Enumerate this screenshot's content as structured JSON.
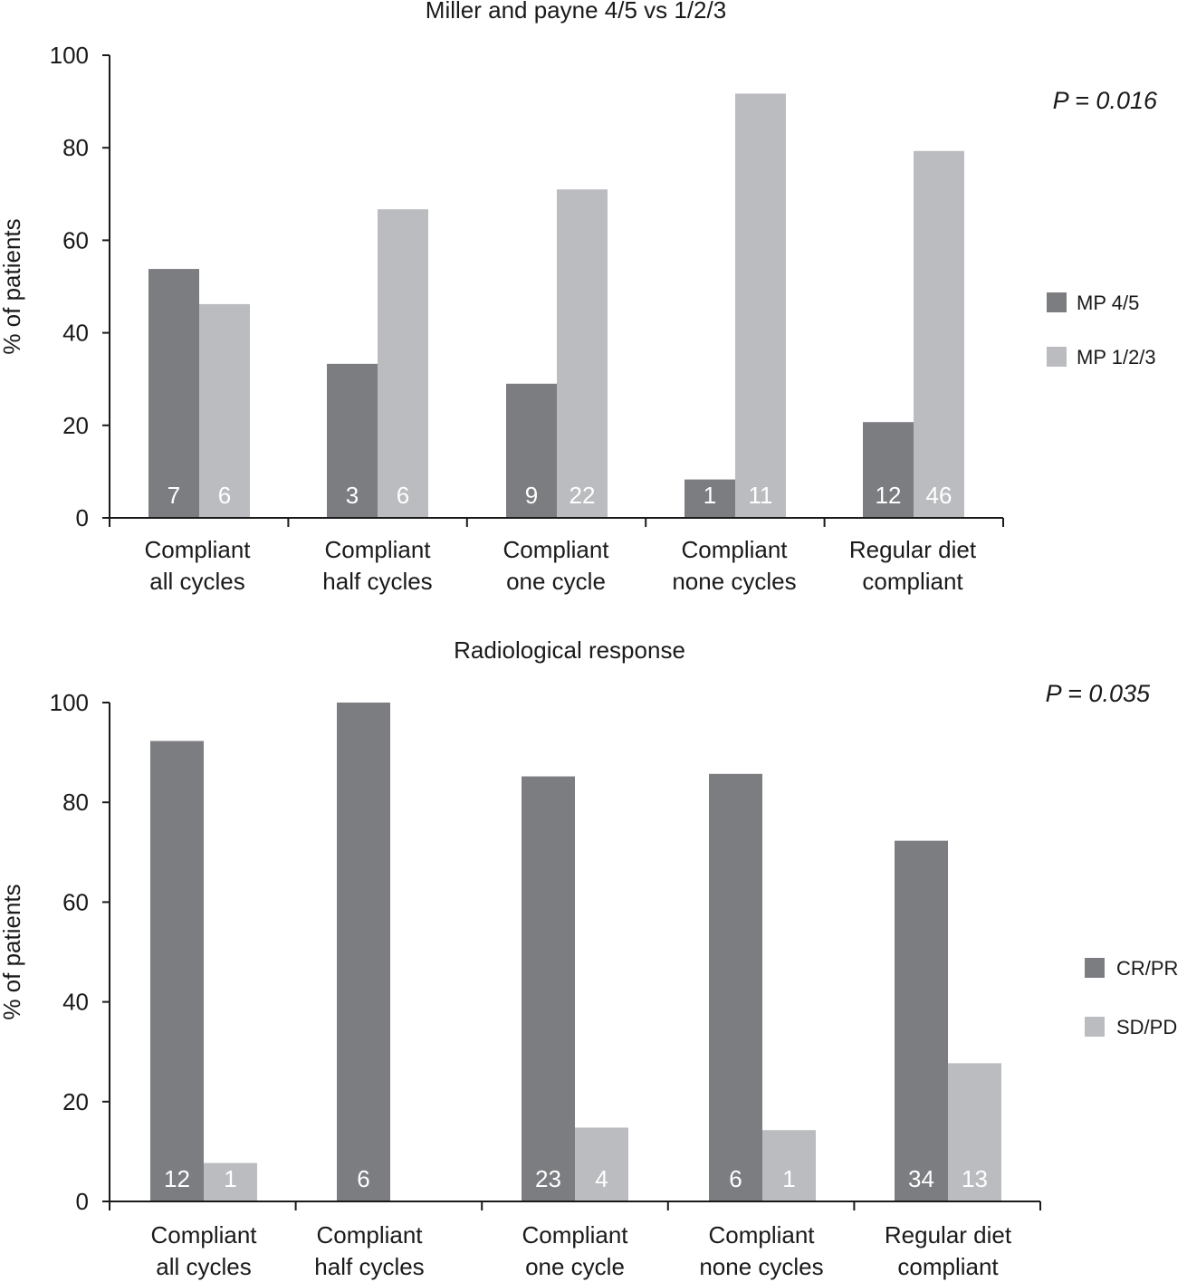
{
  "colors": {
    "dark": "#7c7d81",
    "light": "#bbbcbf",
    "axis": "#1a1a1a",
    "inbar": "#ffffff"
  },
  "chart_data": [
    {
      "type": "bar",
      "title": "Miller and payne 4/5 vs 1/2/3",
      "ylabel": "% of patients",
      "xlabel": "",
      "ylim": [
        0,
        100
      ],
      "yticks": [
        "0",
        "20",
        "40",
        "60",
        "80",
        "100"
      ],
      "annotation": "P = 0.016",
      "legend_position": "right",
      "categories": [
        [
          "Compliant",
          "all cycles"
        ],
        [
          "Compliant",
          "half cycles"
        ],
        [
          "Compliant",
          "one cycle"
        ],
        [
          "Compliant",
          "none cycles"
        ],
        [
          "Regular diet",
          "compliant"
        ]
      ],
      "series": [
        {
          "name": "MP 4/5",
          "values": [
            53.8,
            33.3,
            29.0,
            8.3,
            20.7
          ],
          "counts": [
            "7",
            "3",
            "9",
            "1",
            "12"
          ]
        },
        {
          "name": "MP 1/2/3",
          "values": [
            46.2,
            66.7,
            71.0,
            91.7,
            79.3
          ],
          "counts": [
            "6",
            "6",
            "22",
            "11",
            "46"
          ]
        }
      ]
    },
    {
      "type": "bar",
      "title": "Radiological response",
      "ylabel": "% of patients",
      "xlabel": "",
      "ylim": [
        0,
        100
      ],
      "yticks": [
        "0",
        "20",
        "40",
        "60",
        "80",
        "100"
      ],
      "annotation": "P = 0.035",
      "legend_position": "right",
      "categories": [
        [
          "Compliant",
          "all cycles"
        ],
        [
          "Compliant",
          "half cycles"
        ],
        [
          "Compliant",
          "one cycle"
        ],
        [
          "Compliant",
          "none cycles"
        ],
        [
          "Regular diet",
          "compliant"
        ]
      ],
      "series": [
        {
          "name": "CR/PR",
          "values": [
            92.3,
            100,
            85.2,
            85.7,
            72.3
          ],
          "counts": [
            "12",
            "6",
            "23",
            "6",
            "34"
          ]
        },
        {
          "name": "SD/PD",
          "values": [
            7.7,
            0,
            14.8,
            14.3,
            27.7
          ],
          "counts": [
            "1",
            "",
            "4",
            "1",
            "13"
          ]
        }
      ]
    }
  ]
}
